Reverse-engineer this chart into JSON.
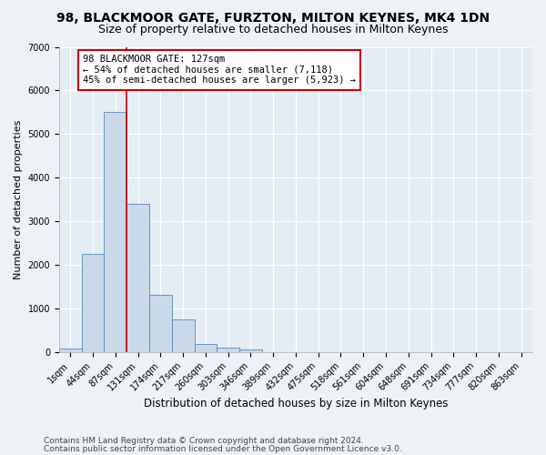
{
  "title": "98, BLACKMOOR GATE, FURZTON, MILTON KEYNES, MK4 1DN",
  "subtitle": "Size of property relative to detached houses in Milton Keynes",
  "xlabel": "Distribution of detached houses by size in Milton Keynes",
  "ylabel": "Number of detached properties",
  "footnote1": "Contains HM Land Registry data © Crown copyright and database right 2024.",
  "footnote2": "Contains public sector information licensed under the Open Government Licence v3.0.",
  "bar_color": "#c9d9ea",
  "bar_edgecolor": "#5588bb",
  "vline_color": "#cc0000",
  "annotation_text": "98 BLACKMOOR GATE: 127sqm\n← 54% of detached houses are smaller (7,118)\n45% of semi-detached houses are larger (5,923) →",
  "annotation_box_facecolor": "#ffffff",
  "annotation_box_edgecolor": "#cc0000",
  "categories": [
    "1sqm",
    "44sqm",
    "87sqm",
    "131sqm",
    "174sqm",
    "217sqm",
    "260sqm",
    "303sqm",
    "346sqm",
    "389sqm",
    "432sqm",
    "475sqm",
    "518sqm",
    "561sqm",
    "604sqm",
    "648sqm",
    "691sqm",
    "734sqm",
    "777sqm",
    "820sqm",
    "863sqm"
  ],
  "values": [
    70,
    2250,
    5500,
    3400,
    1300,
    750,
    175,
    90,
    60,
    0,
    0,
    0,
    0,
    0,
    0,
    0,
    0,
    0,
    0,
    0,
    0
  ],
  "ylim": [
    0,
    7000
  ],
  "yticks": [
    0,
    1000,
    2000,
    3000,
    4000,
    5000,
    6000,
    7000
  ],
  "fig_facecolor": "#edf2f7",
  "ax_facecolor": "#e4ecf4",
  "grid_color": "#ffffff",
  "title_fontsize": 10,
  "subtitle_fontsize": 9,
  "xlabel_fontsize": 8.5,
  "ylabel_fontsize": 8,
  "tick_fontsize": 7,
  "annotation_fontsize": 7.5,
  "footnote_fontsize": 6.5,
  "vline_x_index": 2.5
}
